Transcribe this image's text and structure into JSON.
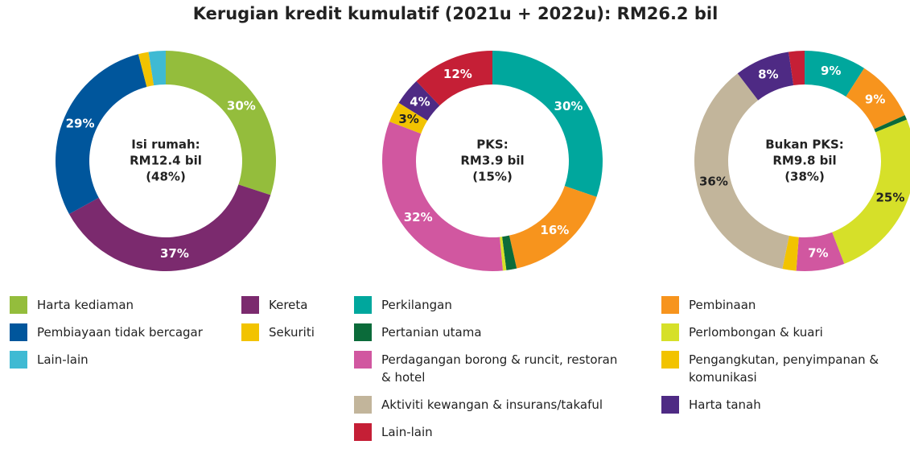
{
  "title": "Kerugian kredit kumulatif (2021u + 2022u): RM26.2 bil",
  "chart_data": [
    {
      "type": "donut",
      "center_label": [
        "Isi rumah:",
        "RM12.4 bil",
        "(48%)"
      ],
      "categories": [
        "Harta kediaman",
        "Kereta",
        "Pembiayaan tidak bercagar",
        "Sekuriti",
        "Lain-lain"
      ],
      "colors": [
        "#94bd3c",
        "#7b2a6e",
        "#00569c",
        "#f2c300",
        "#3fbad3"
      ],
      "values": [
        30,
        37,
        29,
        1.5,
        2.5
      ],
      "value_labels": [
        "30%",
        "37%",
        "29%",
        null,
        null
      ]
    },
    {
      "type": "donut",
      "center_label": [
        "PKS:",
        "RM3.9 bil",
        "(15%)"
      ],
      "colors": [
        "#00a79d",
        "#f7941d",
        "#0b6b3a",
        "#d6e029",
        "#d157a0",
        "#f2c300",
        null,
        "#4e2a84",
        "#c51f36"
      ],
      "values": [
        30,
        16,
        1.5,
        0.5,
        32,
        3,
        null,
        4,
        12
      ],
      "value_labels": [
        "30%",
        "16%",
        null,
        null,
        "32%",
        "3%",
        null,
        "4%",
        "12%"
      ]
    },
    {
      "type": "donut",
      "center_label": [
        "Bukan PKS:",
        "RM9.8 bil",
        "(38%)"
      ],
      "categories": [
        "Perkilangan",
        "Pembinaan",
        "Pertanian utama",
        "Perlombongan & kuari",
        "Perdagangan borong & runcit, restoran & hotel",
        "Pengangkutan, penyimpanan & komunikasi",
        "Aktiviti kewangan & insurans/takaful",
        "Harta tanah",
        "Lain-lain"
      ],
      "colors": [
        "#00a79d",
        "#f7941d",
        "#0b6b3a",
        "#d6e029",
        "#d157a0",
        "#f2c300",
        "#c2b59b",
        "#4e2a84",
        "#c51f36"
      ],
      "values": [
        9,
        9,
        0.7,
        25,
        7,
        2,
        36,
        8,
        2.3
      ],
      "value_labels": [
        "9%",
        "9%",
        null,
        "25%",
        "7%",
        null,
        "36%",
        "8%",
        null
      ]
    }
  ]
}
